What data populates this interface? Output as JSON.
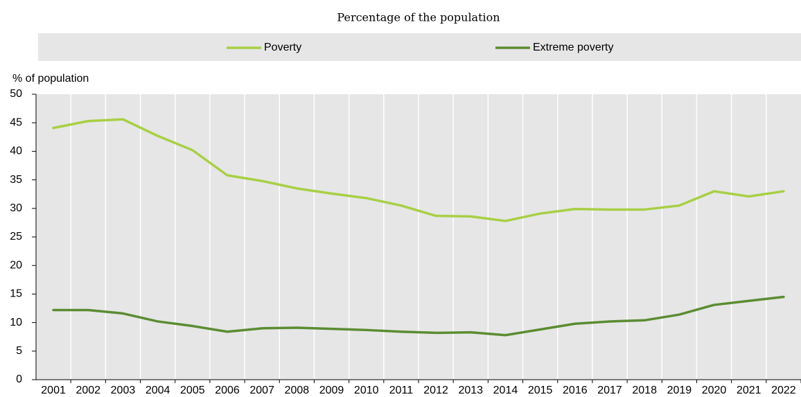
{
  "chart_data": {
    "type": "line",
    "title": "Percentage of the population",
    "y_label": "% of population",
    "categories": [
      "2001",
      "2002",
      "2003",
      "2004",
      "2005",
      "2006",
      "2007",
      "2008",
      "2009",
      "2010",
      "2011",
      "2012",
      "2013",
      "2014",
      "2015",
      "2016",
      "2017",
      "2018",
      "2019",
      "2020",
      "2021",
      "2022"
    ],
    "series": [
      {
        "name": "Poverty",
        "color": "#a8cf45",
        "values": [
          44.1,
          45.3,
          45.6,
          42.7,
          40.2,
          35.8,
          34.8,
          33.5,
          32.6,
          31.8,
          30.5,
          28.7,
          28.6,
          27.8,
          29.1,
          29.9,
          29.8,
          29.8,
          30.5,
          33.0,
          32.1,
          33.0
        ]
      },
      {
        "name": "Extreme poverty",
        "color": "#5b8c32",
        "values": [
          12.2,
          12.2,
          11.6,
          10.2,
          9.4,
          8.4,
          9.0,
          9.1,
          8.9,
          8.7,
          8.4,
          8.2,
          8.3,
          7.8,
          8.8,
          9.8,
          10.2,
          10.4,
          11.4,
          13.1,
          13.8,
          14.5
        ]
      }
    ],
    "ylim": [
      0,
      50
    ],
    "yticks": [
      0,
      5,
      10,
      15,
      20,
      25,
      30,
      35,
      40,
      45,
      50
    ],
    "legend": "top"
  }
}
